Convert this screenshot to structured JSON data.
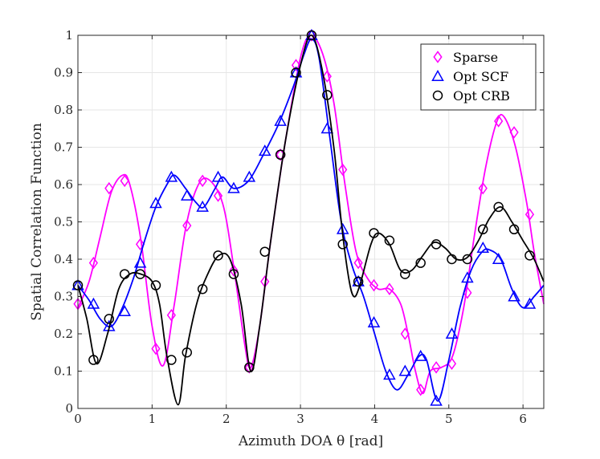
{
  "chart_data": {
    "type": "line",
    "title": "",
    "xlabel": "Azimuth DOA θ [rad]",
    "ylabel": "Spatial Correlation Function",
    "xlim": [
      0,
      6.28
    ],
    "ylim": [
      0,
      1
    ],
    "xticks": [
      0,
      1,
      2,
      3,
      4,
      5,
      6
    ],
    "yticks": [
      0,
      0.1,
      0.2,
      0.3,
      0.4,
      0.5,
      0.6,
      0.7,
      0.8,
      0.9,
      1
    ],
    "ytick_labels": [
      "0",
      "0.1",
      "0.2",
      "0.3",
      "0.4",
      "0.5",
      "0.6",
      "0.7",
      "0.8",
      "0.9",
      "1"
    ],
    "grid": true,
    "legend_position": "top-right",
    "series": [
      {
        "name": "Sparse",
        "color": "#ff00ff",
        "marker": "diamond",
        "curve": [
          [
            0,
            0.27
          ],
          [
            0.15,
            0.34
          ],
          [
            0.3,
            0.46
          ],
          [
            0.45,
            0.58
          ],
          [
            0.6,
            0.625
          ],
          [
            0.7,
            0.6
          ],
          [
            0.85,
            0.45
          ],
          [
            1.0,
            0.22
          ],
          [
            1.15,
            0.115
          ],
          [
            1.3,
            0.28
          ],
          [
            1.45,
            0.48
          ],
          [
            1.6,
            0.59
          ],
          [
            1.75,
            0.615
          ],
          [
            1.95,
            0.55
          ],
          [
            2.1,
            0.38
          ],
          [
            2.25,
            0.17
          ],
          [
            2.33,
            0.11
          ],
          [
            2.45,
            0.22
          ],
          [
            2.6,
            0.45
          ],
          [
            2.8,
            0.72
          ],
          [
            3.0,
            0.94
          ],
          [
            3.14,
            1.0
          ],
          [
            3.3,
            0.95
          ],
          [
            3.45,
            0.82
          ],
          [
            3.6,
            0.6
          ],
          [
            3.75,
            0.42
          ],
          [
            3.9,
            0.35
          ],
          [
            4.05,
            0.32
          ],
          [
            4.2,
            0.32
          ],
          [
            4.35,
            0.28
          ],
          [
            4.45,
            0.2
          ],
          [
            4.55,
            0.1
          ],
          [
            4.65,
            0.04
          ],
          [
            4.75,
            0.1
          ],
          [
            4.9,
            0.11
          ],
          [
            5.05,
            0.14
          ],
          [
            5.2,
            0.27
          ],
          [
            5.35,
            0.47
          ],
          [
            5.5,
            0.65
          ],
          [
            5.65,
            0.77
          ],
          [
            5.75,
            0.78
          ],
          [
            5.9,
            0.7
          ],
          [
            6.05,
            0.55
          ],
          [
            6.15,
            0.42
          ],
          [
            6.28,
            0.28
          ]
        ],
        "markers": [
          [
            0,
            0.28
          ],
          [
            0.21,
            0.39
          ],
          [
            0.42,
            0.59
          ],
          [
            0.63,
            0.61
          ],
          [
            0.84,
            0.44
          ],
          [
            1.05,
            0.16
          ],
          [
            1.26,
            0.25
          ],
          [
            1.47,
            0.49
          ],
          [
            1.68,
            0.61
          ],
          [
            1.89,
            0.57
          ],
          [
            2.1,
            0.37
          ],
          [
            2.31,
            0.11
          ],
          [
            2.52,
            0.34
          ],
          [
            2.73,
            0.68
          ],
          [
            2.94,
            0.92
          ],
          [
            3.15,
            1.0
          ],
          [
            3.36,
            0.89
          ],
          [
            3.57,
            0.64
          ],
          [
            3.78,
            0.39
          ],
          [
            3.99,
            0.33
          ],
          [
            4.2,
            0.32
          ],
          [
            4.41,
            0.2
          ],
          [
            4.62,
            0.05
          ],
          [
            4.83,
            0.11
          ],
          [
            5.04,
            0.12
          ],
          [
            5.25,
            0.31
          ],
          [
            5.46,
            0.59
          ],
          [
            5.67,
            0.77
          ],
          [
            5.88,
            0.74
          ],
          [
            6.09,
            0.52
          ]
        ]
      },
      {
        "name": "Opt SCF",
        "color": "#0000ff",
        "marker": "triangle",
        "curve": [
          [
            0,
            0.33
          ],
          [
            0.15,
            0.29
          ],
          [
            0.3,
            0.24
          ],
          [
            0.45,
            0.22
          ],
          [
            0.6,
            0.27
          ],
          [
            0.75,
            0.35
          ],
          [
            0.9,
            0.45
          ],
          [
            1.05,
            0.54
          ],
          [
            1.2,
            0.6
          ],
          [
            1.3,
            0.625
          ],
          [
            1.45,
            0.59
          ],
          [
            1.6,
            0.55
          ],
          [
            1.7,
            0.54
          ],
          [
            1.85,
            0.59
          ],
          [
            1.95,
            0.62
          ],
          [
            2.1,
            0.59
          ],
          [
            2.3,
            0.61
          ],
          [
            2.5,
            0.68
          ],
          [
            2.7,
            0.76
          ],
          [
            2.9,
            0.86
          ],
          [
            3.05,
            0.95
          ],
          [
            3.15,
            0.99
          ],
          [
            3.25,
            0.94
          ],
          [
            3.4,
            0.72
          ],
          [
            3.55,
            0.5
          ],
          [
            3.7,
            0.38
          ],
          [
            3.85,
            0.3
          ],
          [
            4.0,
            0.2
          ],
          [
            4.15,
            0.1
          ],
          [
            4.3,
            0.05
          ],
          [
            4.45,
            0.09
          ],
          [
            4.6,
            0.14
          ],
          [
            4.7,
            0.13
          ],
          [
            4.85,
            0.02
          ],
          [
            5.0,
            0.13
          ],
          [
            5.15,
            0.27
          ],
          [
            5.3,
            0.37
          ],
          [
            5.45,
            0.42
          ],
          [
            5.55,
            0.425
          ],
          [
            5.7,
            0.4
          ],
          [
            5.85,
            0.32
          ],
          [
            6.0,
            0.27
          ],
          [
            6.15,
            0.3
          ],
          [
            6.28,
            0.33
          ]
        ],
        "markers": [
          [
            0,
            0.33
          ],
          [
            0.21,
            0.28
          ],
          [
            0.42,
            0.22
          ],
          [
            0.63,
            0.26
          ],
          [
            0.84,
            0.39
          ],
          [
            1.05,
            0.55
          ],
          [
            1.26,
            0.62
          ],
          [
            1.47,
            0.57
          ],
          [
            1.68,
            0.54
          ],
          [
            1.89,
            0.62
          ],
          [
            2.1,
            0.59
          ],
          [
            2.31,
            0.62
          ],
          [
            2.52,
            0.69
          ],
          [
            2.73,
            0.77
          ],
          [
            2.94,
            0.9
          ],
          [
            3.15,
            1.0
          ],
          [
            3.36,
            0.75
          ],
          [
            3.57,
            0.48
          ],
          [
            3.78,
            0.34
          ],
          [
            3.99,
            0.23
          ],
          [
            4.2,
            0.09
          ],
          [
            4.41,
            0.1
          ],
          [
            4.62,
            0.14
          ],
          [
            4.83,
            0.02
          ],
          [
            5.04,
            0.2
          ],
          [
            5.25,
            0.35
          ],
          [
            5.46,
            0.43
          ],
          [
            5.67,
            0.4
          ],
          [
            5.88,
            0.3
          ],
          [
            6.09,
            0.28
          ]
        ]
      },
      {
        "name": "Opt CRB",
        "color": "#000000",
        "marker": "circle",
        "curve": [
          [
            0,
            0.33
          ],
          [
            0.12,
            0.24
          ],
          [
            0.25,
            0.12
          ],
          [
            0.4,
            0.2
          ],
          [
            0.55,
            0.32
          ],
          [
            0.7,
            0.36
          ],
          [
            0.85,
            0.36
          ],
          [
            1.0,
            0.34
          ],
          [
            1.1,
            0.28
          ],
          [
            1.2,
            0.14
          ],
          [
            1.35,
            0.01
          ],
          [
            1.45,
            0.14
          ],
          [
            1.6,
            0.28
          ],
          [
            1.75,
            0.36
          ],
          [
            1.9,
            0.41
          ],
          [
            2.05,
            0.4
          ],
          [
            2.2,
            0.28
          ],
          [
            2.33,
            0.1
          ],
          [
            2.45,
            0.22
          ],
          [
            2.6,
            0.45
          ],
          [
            2.8,
            0.72
          ],
          [
            3.0,
            0.92
          ],
          [
            3.15,
            1.0
          ],
          [
            3.3,
            0.9
          ],
          [
            3.45,
            0.7
          ],
          [
            3.55,
            0.5
          ],
          [
            3.65,
            0.35
          ],
          [
            3.72,
            0.3
          ],
          [
            3.8,
            0.33
          ],
          [
            3.95,
            0.44
          ],
          [
            4.05,
            0.47
          ],
          [
            4.2,
            0.44
          ],
          [
            4.35,
            0.37
          ],
          [
            4.5,
            0.37
          ],
          [
            4.65,
            0.41
          ],
          [
            4.8,
            0.445
          ],
          [
            4.95,
            0.43
          ],
          [
            5.1,
            0.4
          ],
          [
            5.25,
            0.405
          ],
          [
            5.4,
            0.45
          ],
          [
            5.55,
            0.51
          ],
          [
            5.7,
            0.54
          ],
          [
            5.85,
            0.5
          ],
          [
            6.0,
            0.45
          ],
          [
            6.15,
            0.4
          ],
          [
            6.28,
            0.34
          ]
        ],
        "markers": [
          [
            0,
            0.33
          ],
          [
            0.21,
            0.13
          ],
          [
            0.42,
            0.24
          ],
          [
            0.63,
            0.36
          ],
          [
            0.84,
            0.36
          ],
          [
            1.05,
            0.33
          ],
          [
            1.26,
            0.13
          ],
          [
            1.47,
            0.15
          ],
          [
            1.68,
            0.32
          ],
          [
            1.89,
            0.41
          ],
          [
            2.1,
            0.36
          ],
          [
            2.31,
            0.11
          ],
          [
            2.52,
            0.42
          ],
          [
            2.73,
            0.68
          ],
          [
            2.94,
            0.9
          ],
          [
            3.15,
            1.0
          ],
          [
            3.36,
            0.84
          ],
          [
            3.57,
            0.44
          ],
          [
            3.78,
            0.34
          ],
          [
            3.99,
            0.47
          ],
          [
            4.2,
            0.45
          ],
          [
            4.41,
            0.36
          ],
          [
            4.62,
            0.39
          ],
          [
            4.83,
            0.44
          ],
          [
            5.04,
            0.4
          ],
          [
            5.25,
            0.4
          ],
          [
            5.46,
            0.48
          ],
          [
            5.67,
            0.54
          ],
          [
            5.88,
            0.48
          ],
          [
            6.09,
            0.41
          ]
        ]
      }
    ]
  }
}
